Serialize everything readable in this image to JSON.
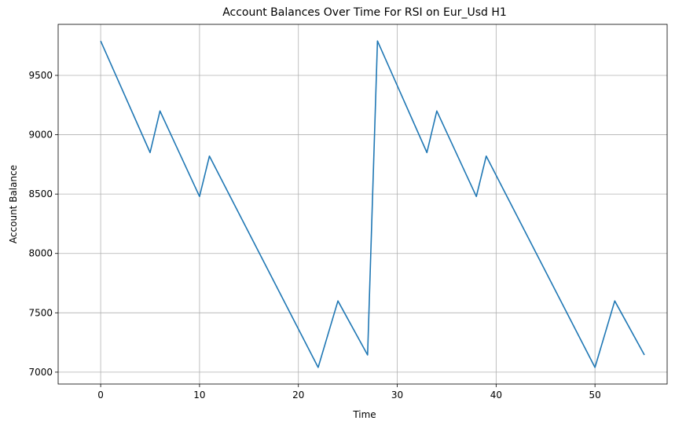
{
  "chart_data": {
    "type": "line",
    "title": "Account Balances Over Time For RSI on Eur_Usd H1",
    "xlabel": "Time",
    "ylabel": "Account Balance",
    "xlim": [
      -4.3,
      57.3
    ],
    "ylim": [
      6900,
      9930
    ],
    "grid": true,
    "line_color": "#1f77b4",
    "x_ticks": [
      0,
      10,
      20,
      30,
      40,
      50
    ],
    "x_tick_labels": [
      "0",
      "10",
      "20",
      "30",
      "40",
      "50"
    ],
    "y_ticks": [
      7000,
      7500,
      8000,
      8500,
      9000,
      9500
    ],
    "y_tick_labels": [
      "7000",
      "7500",
      "8000",
      "8500",
      "9000",
      "9500"
    ],
    "series": [
      {
        "points": [
          [
            0,
            9790
          ],
          [
            5,
            8850
          ],
          [
            6,
            9200
          ],
          [
            10,
            8480
          ],
          [
            11,
            8820
          ],
          [
            22,
            7040
          ],
          [
            24,
            7600
          ],
          [
            27,
            7145
          ],
          [
            28,
            9790
          ],
          [
            33,
            8850
          ],
          [
            34,
            9200
          ],
          [
            38,
            8480
          ],
          [
            39,
            8820
          ],
          [
            50,
            7040
          ],
          [
            52,
            7600
          ],
          [
            55,
            7145
          ]
        ]
      }
    ]
  }
}
